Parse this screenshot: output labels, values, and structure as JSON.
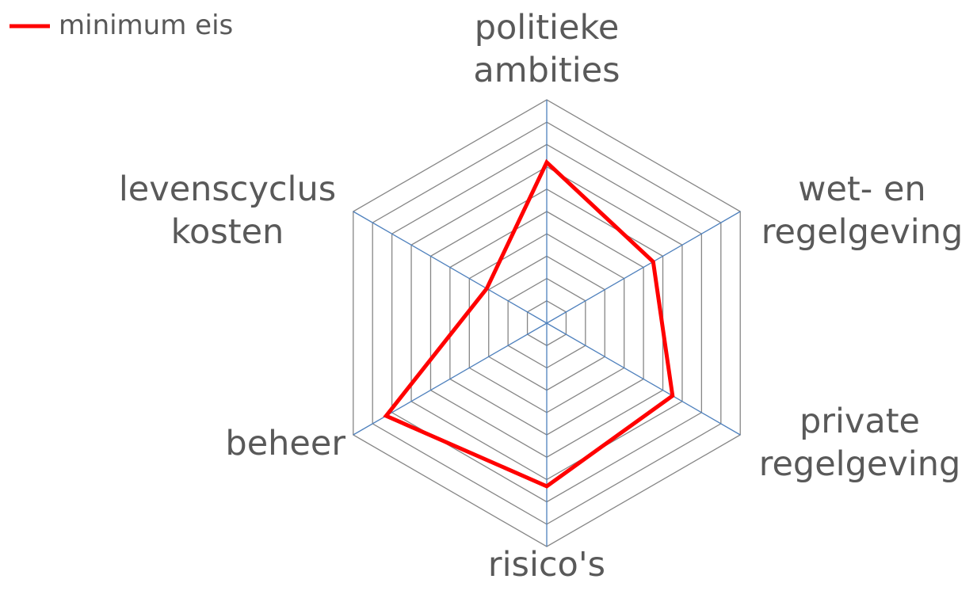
{
  "chart_data": {
    "type": "radar",
    "categories": [
      "politieke\nambities",
      "wet- en\nregelgeving",
      "private\nregelgeving",
      "risico's",
      "beheer",
      "levenscyclus\nkosten"
    ],
    "series": [
      {
        "name": "minimum eis",
        "color": "#ff0000",
        "values": [
          7.2,
          5.5,
          6.5,
          7.3,
          8.3,
          3.1
        ]
      }
    ],
    "ylim": [
      0,
      10
    ],
    "yticks": [
      0,
      1,
      2,
      3,
      4,
      5,
      6,
      7,
      8,
      9,
      10
    ],
    "grid": true,
    "legend": "top-left"
  }
}
